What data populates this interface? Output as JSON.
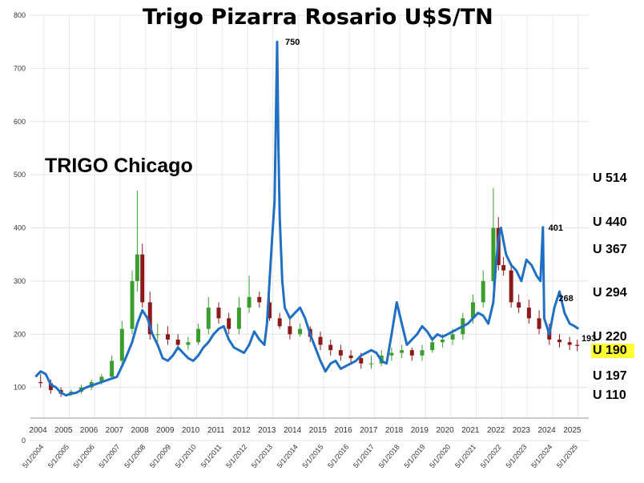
{
  "chart_data": {
    "type": "line",
    "title": "Trigo Pizarra Rosario U$S/TN",
    "subtitle": "TRIGO Chicago",
    "ylim": [
      0,
      800
    ],
    "yticks": [
      0,
      100,
      200,
      300,
      400,
      500,
      600,
      700,
      800
    ],
    "xlim": [
      2004,
      2025.6
    ],
    "year_labels": [
      "2004",
      "2005",
      "2006",
      "2007",
      "2008",
      "2009",
      "2010",
      "2011",
      "2012",
      "2013",
      "2014",
      "2015",
      "2016",
      "2017",
      "2018",
      "2019",
      "2020",
      "2021",
      "2022",
      "2023",
      "2024",
      "2025"
    ],
    "date_labels": [
      "5/1/2004",
      "5/1/2005",
      "5/1/2006",
      "5/1/2007",
      "5/1/2008",
      "5/1/2009",
      "5/1/2010",
      "5/1/2011",
      "5/1/2012",
      "5/1/2013",
      "5/1/2014",
      "5/1/2015",
      "5/1/2016",
      "5/1/2017",
      "5/1/2018",
      "5/1/2019",
      "5/1/2020",
      "5/1/2021",
      "5/1/2022",
      "5/1/2023",
      "5/1/2024",
      "5/1/2025"
    ],
    "grid": true,
    "series": [
      {
        "color": "#1f6fc5",
        "x": [
          2004.0,
          2004.2,
          2004.4,
          2004.6,
          2004.8,
          2005.0,
          2005.2,
          2005.4,
          2005.6,
          2005.8,
          2006.0,
          2006.3,
          2006.6,
          2006.9,
          2007.2,
          2007.5,
          2007.8,
          2008.0,
          2008.2,
          2008.4,
          2008.6,
          2008.8,
          2009.0,
          2009.2,
          2009.4,
          2009.6,
          2009.8,
          2010.0,
          2010.2,
          2010.4,
          2010.6,
          2010.8,
          2011.0,
          2011.2,
          2011.4,
          2011.6,
          2011.8,
          2012.0,
          2012.2,
          2012.4,
          2012.6,
          2012.8,
          2013.0,
          2013.1,
          2013.2,
          2013.3,
          2013.4,
          2013.45,
          2013.5,
          2013.55,
          2013.6,
          2013.7,
          2013.8,
          2014.0,
          2014.2,
          2014.4,
          2014.6,
          2014.8,
          2015.0,
          2015.2,
          2015.4,
          2015.6,
          2015.8,
          2016.0,
          2016.2,
          2016.4,
          2016.6,
          2016.8,
          2017.0,
          2017.2,
          2017.4,
          2017.6,
          2017.8,
          2018.0,
          2018.2,
          2018.4,
          2018.6,
          2018.8,
          2019.0,
          2019.2,
          2019.4,
          2019.6,
          2019.8,
          2020.0,
          2020.2,
          2020.4,
          2020.6,
          2020.8,
          2021.0,
          2021.2,
          2021.4,
          2021.6,
          2021.8,
          2022.0,
          2022.1,
          2022.2,
          2022.3,
          2022.5,
          2022.7,
          2022.9,
          2023.1,
          2023.3,
          2023.5,
          2023.7,
          2023.85,
          2023.95,
          2024.0,
          2024.2,
          2024.4,
          2024.6,
          2024.8,
          2025.0,
          2025.2,
          2025.35
        ],
        "y": [
          120,
          130,
          125,
          105,
          100,
          90,
          85,
          88,
          90,
          95,
          100,
          105,
          110,
          115,
          120,
          150,
          185,
          220,
          245,
          230,
          200,
          180,
          155,
          150,
          160,
          175,
          165,
          155,
          150,
          160,
          175,
          185,
          200,
          210,
          215,
          190,
          175,
          170,
          165,
          180,
          205,
          190,
          180,
          220,
          300,
          380,
          450,
          600,
          750,
          550,
          420,
          300,
          250,
          230,
          240,
          250,
          230,
          200,
          175,
          150,
          130,
          145,
          150,
          135,
          140,
          145,
          150,
          160,
          165,
          170,
          165,
          150,
          145,
          200,
          260,
          220,
          180,
          190,
          200,
          215,
          205,
          190,
          200,
          195,
          200,
          205,
          210,
          215,
          220,
          230,
          240,
          235,
          220,
          260,
          330,
          380,
          400,
          350,
          330,
          320,
          300,
          340,
          330,
          310,
          300,
          401,
          230,
          200,
          250,
          280,
          240,
          220,
          215,
          210
        ]
      }
    ],
    "candles_note": "",
    "annotations": [
      {
        "text": "750",
        "x": 2013.5,
        "y": 750
      },
      {
        "text": "401",
        "x": 2023.85,
        "y": 401
      },
      {
        "text": "268",
        "x": 2024.25,
        "y": 268
      },
      {
        "text": "193",
        "x": 2025.15,
        "y": 193
      }
    ],
    "right_labels": [
      {
        "text": "U 514",
        "y": 514
      },
      {
        "text": "U 440",
        "y": 440
      },
      {
        "text": "U 367",
        "y": 367
      },
      {
        "text": "U 294",
        "y": 294
      },
      {
        "text": "U 220",
        "y": 220
      },
      {
        "text": "U 190",
        "y": 190,
        "highlight": true
      },
      {
        "text": "U 197",
        "y": 197
      },
      {
        "text": "U 110",
        "y": 110
      }
    ],
    "candles": {
      "up_color": "#3a9e2f",
      "down_color": "#8b1a1a",
      "x": [
        2004.2,
        2004.6,
        2005.0,
        2005.4,
        2005.8,
        2006.2,
        2006.6,
        2007.0,
        2007.4,
        2007.8,
        2008.0,
        2008.2,
        2008.5,
        2008.8,
        2009.2,
        2009.6,
        2010.0,
        2010.4,
        2010.8,
        2011.2,
        2011.6,
        2012.0,
        2012.4,
        2012.8,
        2013.2,
        2013.6,
        2014.0,
        2014.4,
        2014.8,
        2015.2,
        2015.6,
        2016.0,
        2016.4,
        2016.8,
        2017.2,
        2017.6,
        2018.0,
        2018.4,
        2018.8,
        2019.2,
        2019.6,
        2020.0,
        2020.4,
        2020.8,
        2021.2,
        2021.6,
        2022.0,
        2022.2,
        2022.4,
        2022.7,
        2023.0,
        2023.4,
        2023.8,
        2024.2,
        2024.6,
        2025.0,
        2025.3
      ],
      "open": [
        110,
        108,
        95,
        88,
        92,
        100,
        110,
        120,
        150,
        210,
        300,
        350,
        260,
        200,
        200,
        190,
        180,
        185,
        210,
        250,
        230,
        210,
        250,
        270,
        260,
        230,
        215,
        200,
        210,
        195,
        180,
        170,
        160,
        155,
        145,
        145,
        160,
        165,
        170,
        160,
        170,
        185,
        190,
        200,
        230,
        260,
        300,
        400,
        330,
        320,
        260,
        250,
        230,
        210,
        190,
        185,
        180
      ],
      "close": [
        108,
        95,
        88,
        92,
        100,
        110,
        120,
        150,
        210,
        300,
        350,
        260,
        200,
        200,
        190,
        180,
        185,
        210,
        250,
        230,
        210,
        250,
        270,
        260,
        230,
        215,
        200,
        210,
        195,
        180,
        170,
        160,
        155,
        145,
        145,
        160,
        165,
        170,
        160,
        170,
        185,
        190,
        200,
        230,
        260,
        300,
        400,
        330,
        320,
        260,
        250,
        230,
        210,
        190,
        185,
        180,
        178
      ],
      "high": [
        125,
        115,
        100,
        96,
        105,
        115,
        125,
        160,
        225,
        320,
        470,
        370,
        280,
        220,
        215,
        200,
        195,
        220,
        270,
        260,
        240,
        270,
        310,
        280,
        270,
        240,
        230,
        220,
        215,
        205,
        190,
        180,
        170,
        165,
        160,
        170,
        175,
        180,
        175,
        180,
        195,
        200,
        210,
        240,
        275,
        320,
        475,
        420,
        345,
        335,
        275,
        265,
        245,
        220,
        200,
        195,
        190
      ],
      "low": [
        100,
        88,
        82,
        84,
        88,
        95,
        105,
        115,
        145,
        200,
        280,
        250,
        190,
        185,
        180,
        170,
        170,
        180,
        200,
        220,
        200,
        200,
        240,
        250,
        225,
        210,
        190,
        195,
        185,
        170,
        160,
        150,
        145,
        135,
        135,
        140,
        150,
        155,
        150,
        150,
        165,
        175,
        180,
        190,
        220,
        250,
        290,
        320,
        310,
        250,
        240,
        220,
        200,
        180,
        175,
        170,
        168
      ]
    }
  }
}
